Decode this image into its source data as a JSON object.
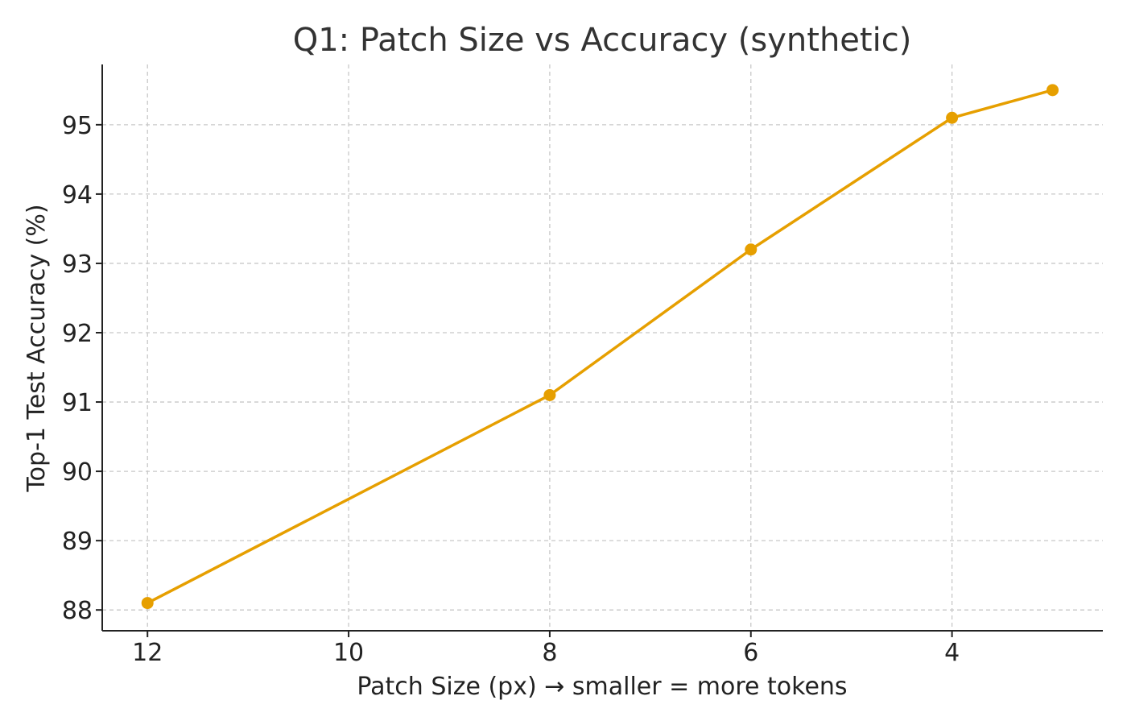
{
  "chart_data": {
    "type": "line",
    "title": "Q1: Patch Size vs Accuracy (synthetic)",
    "xlabel": "Patch Size (px)  → smaller = more tokens",
    "ylabel": "Top-1 Test Accuracy (%)",
    "x_axis_reversed": true,
    "xlim": [
      12.45,
      2.5
    ],
    "ylim": [
      87.7,
      95.87
    ],
    "x_ticks": [
      12,
      10,
      8,
      6,
      4
    ],
    "y_ticks": [
      88,
      89,
      90,
      91,
      92,
      93,
      94,
      95
    ],
    "grid": true,
    "series": [
      {
        "color": "#E69F00",
        "marker": "circle",
        "x": [
          12,
          8,
          6,
          4,
          3
        ],
        "y": [
          88.1,
          91.1,
          93.2,
          95.1,
          95.5
        ]
      }
    ]
  }
}
